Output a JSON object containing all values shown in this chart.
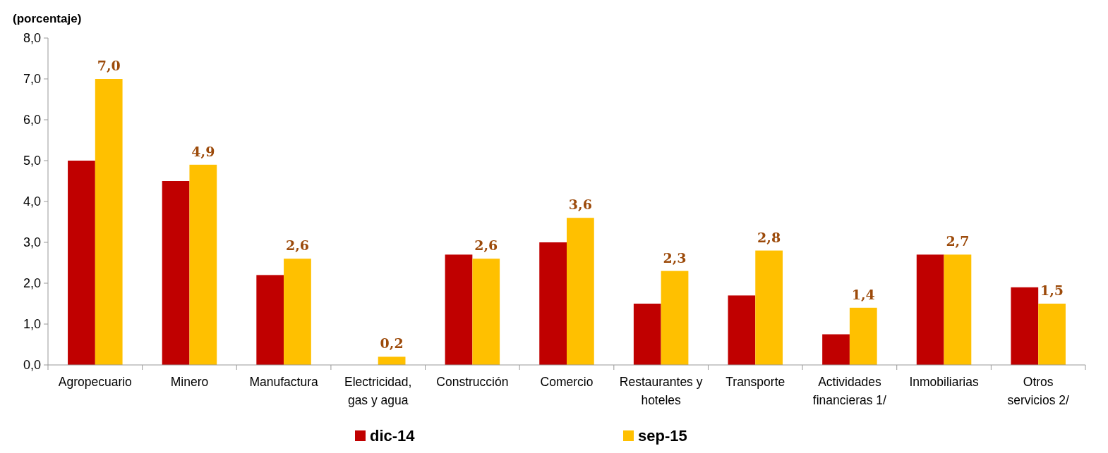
{
  "chart_data": {
    "type": "bar",
    "ylabel": "(porcentaje)",
    "categories": [
      "Agropecuario",
      "Minero",
      "Manufactura",
      "Electricidad, gas y agua",
      "Construcción",
      "Comercio",
      "Restaurantes y hoteles",
      "Transporte",
      "Actividades financieras 1/",
      "Inmobiliarias",
      "Otros servicios 2/"
    ],
    "series": [
      {
        "name": "dic-14",
        "color": "#c00000",
        "values": [
          5.0,
          4.5,
          2.2,
          0,
          2.7,
          3.0,
          1.5,
          1.7,
          0.75,
          2.7,
          1.9
        ]
      },
      {
        "name": "sep-15",
        "color": "#ffc000",
        "values": [
          7.0,
          4.9,
          2.6,
          0.2,
          2.6,
          3.6,
          2.3,
          2.8,
          1.4,
          2.7,
          1.5
        ],
        "value_labels": [
          "7,0",
          "4,9",
          "2,6",
          "0,2",
          "2,6",
          "3,6",
          "2,3",
          "2,8",
          "1,4",
          "2,7",
          "1,5"
        ]
      }
    ],
    "ylim": [
      0,
      8
    ],
    "yticks": [
      {
        "value": 0,
        "label": "0,0"
      },
      {
        "value": 1,
        "label": "1,0"
      },
      {
        "value": 2,
        "label": "2,0"
      },
      {
        "value": 3,
        "label": "3,0"
      },
      {
        "value": 4,
        "label": "4,0"
      },
      {
        "value": 5,
        "label": "5,0"
      },
      {
        "value": 6,
        "label": "6,0"
      },
      {
        "value": 7,
        "label": "7,0"
      },
      {
        "value": 8,
        "label": "8,0"
      }
    ],
    "grid": false,
    "legend": "bottom"
  }
}
